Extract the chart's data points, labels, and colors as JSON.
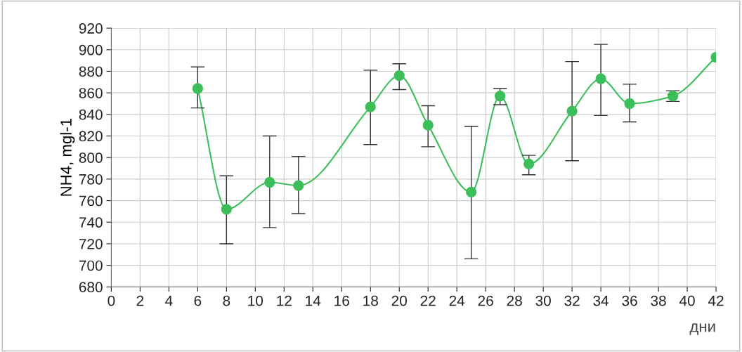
{
  "chart_data": {
    "type": "line",
    "ylabel": "NH4, mgl-1",
    "xlabel": "дни",
    "x": [
      6,
      8,
      11,
      13,
      18,
      20,
      22,
      25,
      27,
      29,
      32,
      34,
      36,
      39,
      42
    ],
    "series": [
      {
        "color": "#3cbf5a",
        "values": [
          864,
          752,
          777,
          774,
          847,
          876,
          830,
          768,
          857,
          794,
          843,
          873,
          850,
          857,
          893
        ],
        "errors": [
          [
            846,
            884
          ],
          [
            720,
            783
          ],
          [
            735,
            820
          ],
          [
            748,
            801
          ],
          [
            812,
            881
          ],
          [
            863,
            887
          ],
          [
            810,
            848
          ],
          [
            706,
            829
          ],
          [
            849,
            864
          ],
          [
            784,
            802
          ],
          [
            797,
            889
          ],
          [
            839,
            905
          ],
          [
            833,
            868
          ],
          [
            852,
            862
          ],
          null
        ]
      }
    ],
    "xlim": [
      0,
      42
    ],
    "xticks": [
      0,
      2,
      4,
      6,
      8,
      10,
      12,
      14,
      16,
      18,
      20,
      22,
      24,
      26,
      28,
      30,
      32,
      34,
      36,
      38,
      40,
      42
    ],
    "ylim": [
      680,
      920
    ],
    "yticks": [
      680,
      700,
      720,
      740,
      760,
      780,
      800,
      820,
      840,
      860,
      880,
      900,
      920
    ],
    "grid": true,
    "marker": "circle",
    "line_style": "solid"
  }
}
